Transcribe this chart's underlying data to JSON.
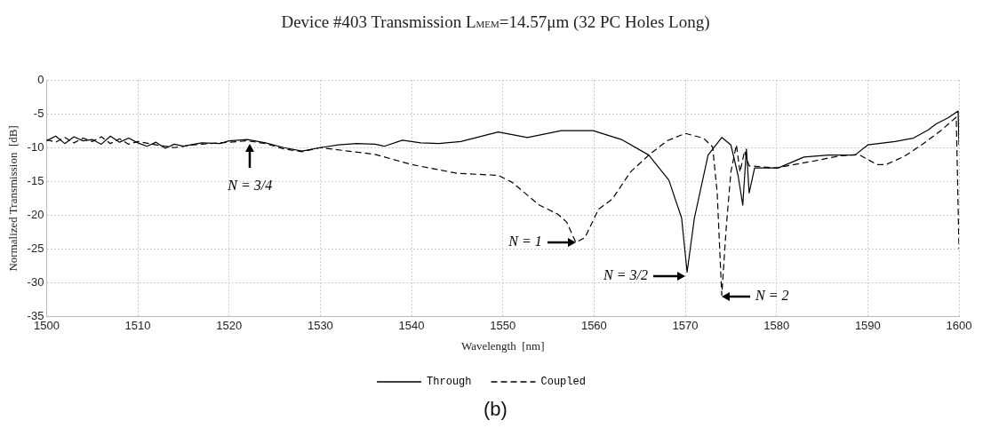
{
  "chart_data": {
    "type": "line",
    "title": "Device #403 Transmission L$_{MEM}$=14.57μm (32 PC Holes Long)",
    "xlabel": "Wavelength  [nm]",
    "ylabel": "Normalized Transmission  [dB]",
    "xlim": [
      1500,
      1600
    ],
    "xticks": [
      1500,
      1510,
      1520,
      1530,
      1540,
      1550,
      1560,
      1570,
      1580,
      1590,
      1600
    ],
    "ylim": [
      -35,
      0
    ],
    "yticks": [
      -35,
      -30,
      -25,
      -20,
      -15,
      -10,
      -5,
      0
    ],
    "grid": true,
    "legend": "bottom",
    "marker": "none",
    "series": [
      {
        "name": "Through",
        "color": "#000000",
        "line_style": "solid",
        "x": [
          1500,
          1501,
          1502,
          1503,
          1504,
          1505,
          1506,
          1507,
          1508,
          1509,
          1510,
          1511,
          1512,
          1513,
          1514,
          1515,
          1517,
          1519,
          1520,
          1522,
          1524,
          1526,
          1528,
          1530,
          1532,
          1534,
          1536,
          1537,
          1539,
          1541,
          1543,
          1545.4,
          1549.5,
          1552.7,
          1556.4,
          1559.9,
          1563,
          1566,
          1568.2,
          1569.6,
          1570.2,
          1571,
          1572.5,
          1574,
          1575,
          1575.8,
          1576.3,
          1576.7,
          1577,
          1577.6,
          1580.2,
          1583,
          1585.7,
          1588.6,
          1590,
          1593,
          1595,
          1596.6,
          1597.5,
          1598.8,
          1599.9,
          1600
        ],
        "values": [
          -9,
          -8.3,
          -9.4,
          -8.4,
          -9,
          -8.8,
          -9.5,
          -8.3,
          -9.2,
          -8.6,
          -9.3,
          -9.8,
          -9.2,
          -10.1,
          -9.5,
          -9.8,
          -9.3,
          -9.4,
          -9,
          -8.8,
          -9.3,
          -10,
          -10.5,
          -10,
          -9.6,
          -9.4,
          -9.5,
          -9.8,
          -8.9,
          -9.3,
          -9.4,
          -9.1,
          -7.7,
          -8.5,
          -7.5,
          -7.5,
          -8.8,
          -11.1,
          -14.8,
          -20.4,
          -28.4,
          -20.4,
          -11.1,
          -8.5,
          -9.6,
          -14.2,
          -18.5,
          -10.2,
          -16.7,
          -13,
          -13,
          -11.4,
          -11.1,
          -11.1,
          -9.6,
          -9.1,
          -8.6,
          -7.4,
          -6.5,
          -5.6,
          -4.6,
          -9.6
        ]
      },
      {
        "name": "Coupled",
        "color": "#000000",
        "line_style": "dashed",
        "x": [
          1500,
          1501,
          1502,
          1503,
          1504,
          1505,
          1506,
          1507,
          1508,
          1509,
          1510,
          1512,
          1514,
          1516,
          1518,
          1520,
          1522,
          1524,
          1526,
          1528,
          1530,
          1533,
          1536,
          1540,
          1545,
          1549.5,
          1551,
          1554,
          1556,
          1557,
          1558,
          1559,
          1560.5,
          1562,
          1564,
          1566,
          1568,
          1570,
          1572,
          1573,
          1573.5,
          1574,
          1574.5,
          1575,
          1575.6,
          1576,
          1576.5,
          1577,
          1580,
          1584,
          1587,
          1589,
          1591,
          1592,
          1594,
          1596,
          1598,
          1599.7,
          1600
        ],
        "values": [
          -8.8,
          -9.2,
          -8.5,
          -9.3,
          -8.6,
          -9.1,
          -8.4,
          -9.4,
          -8.7,
          -9.5,
          -9.1,
          -9.6,
          -10,
          -9.6,
          -9.4,
          -9.2,
          -9,
          -9.4,
          -10.2,
          -10.6,
          -10,
          -10.5,
          -11,
          -12.5,
          -13.8,
          -14.1,
          -15.1,
          -18.5,
          -19.8,
          -21,
          -24,
          -23.3,
          -19.1,
          -17.6,
          -13.6,
          -11.1,
          -9,
          -7.9,
          -8.6,
          -9.9,
          -16.7,
          -31.8,
          -21.6,
          -13.6,
          -9.6,
          -13.6,
          -10.5,
          -12.7,
          -13,
          -12,
          -11.2,
          -11,
          -12.5,
          -12.5,
          -11.3,
          -9.5,
          -7.5,
          -5.5,
          -25
        ]
      }
    ],
    "annotations": [
      {
        "text": "N = 3/4",
        "x": 1522.3,
        "y": -9.5
      },
      {
        "text": "N = 1",
        "x": 1558,
        "y": -24
      },
      {
        "text": "N = 3/2",
        "x": 1570,
        "y": -29
      },
      {
        "text": "N = 2",
        "x": 1574,
        "y": -32
      },
      "(b)"
    ]
  }
}
